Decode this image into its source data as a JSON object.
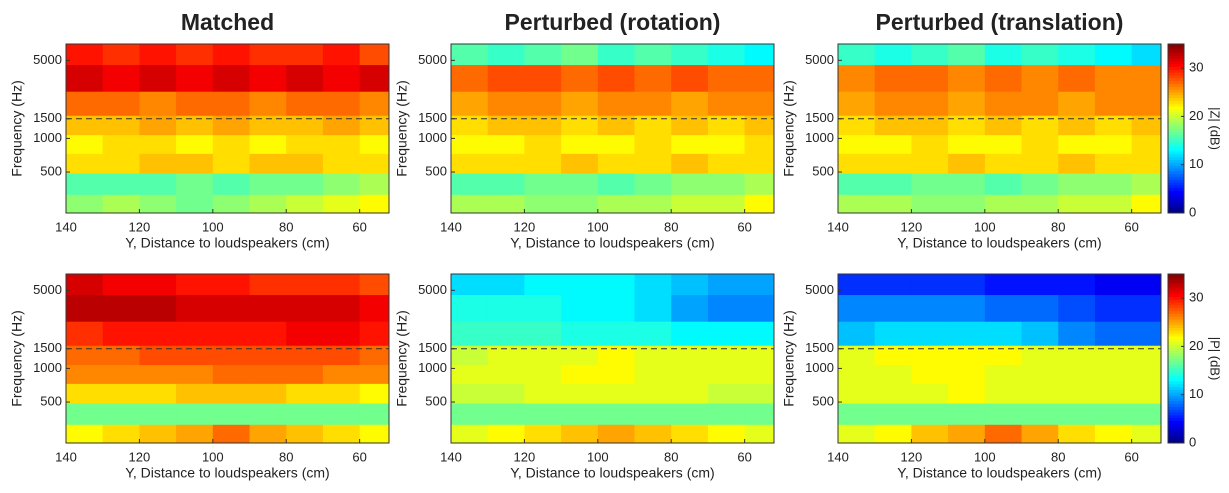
{
  "chart_data": [
    {
      "type": "heatmap",
      "title": "Matched",
      "xlabel": "Y, Distance to loudspeakers (cm)",
      "ylabel": "Frequency (Hz)",
      "colormap": "jet",
      "log_y": true,
      "hline": 1500,
      "x": [
        135,
        125,
        115,
        105,
        95,
        85,
        75,
        65,
        55
      ],
      "y": [
        250,
        400,
        600,
        900,
        1300,
        2000,
        3500,
        6000
      ],
      "z": [
        [
          18,
          19,
          18,
          17,
          18,
          19,
          20,
          21,
          22
        ],
        [
          16,
          16,
          16,
          17,
          16,
          17,
          17,
          18,
          19
        ],
        [
          23,
          23,
          24,
          24,
          23,
          24,
          24,
          23,
          23
        ],
        [
          22,
          23,
          23,
          22,
          23,
          22,
          23,
          23,
          22
        ],
        [
          24,
          24,
          25,
          24,
          25,
          24,
          24,
          25,
          24
        ],
        [
          27,
          27,
          26,
          27,
          27,
          26,
          27,
          27,
          26
        ],
        [
          32,
          31,
          32,
          31,
          32,
          31,
          32,
          31,
          32
        ],
        [
          30,
          29,
          30,
          29,
          30,
          29,
          29,
          30,
          28
        ]
      ],
      "xlim": [
        140,
        52
      ],
      "ylim": [
        215,
        7000
      ],
      "xticks": [
        140,
        120,
        100,
        80,
        60
      ],
      "yticks": [
        500,
        1000,
        1500,
        5000
      ],
      "zlim": [
        0,
        35
      ]
    },
    {
      "type": "heatmap",
      "title": "Perturbed (rotation)",
      "xlabel": "Y, Distance to loudspeakers (cm)",
      "ylabel": "Frequency (Hz)",
      "colormap": "jet",
      "log_y": true,
      "hline": 1500,
      "x": [
        135,
        125,
        115,
        105,
        95,
        85,
        75,
        65,
        55
      ],
      "y": [
        250,
        400,
        600,
        900,
        1300,
        2000,
        3500,
        6000
      ],
      "z": [
        [
          19,
          19,
          18,
          18,
          19,
          19,
          20,
          20,
          22
        ],
        [
          16,
          16,
          17,
          17,
          16,
          17,
          18,
          18,
          19
        ],
        [
          23,
          23,
          23,
          24,
          23,
          23,
          24,
          23,
          23
        ],
        [
          22,
          22,
          23,
          22,
          22,
          23,
          22,
          22,
          23
        ],
        [
          23,
          24,
          24,
          23,
          24,
          23,
          24,
          23,
          24
        ],
        [
          25,
          26,
          26,
          25,
          26,
          26,
          25,
          26,
          26
        ],
        [
          27,
          28,
          28,
          27,
          28,
          27,
          28,
          27,
          27
        ],
        [
          16,
          15,
          16,
          17,
          15,
          16,
          15,
          14,
          13
        ]
      ],
      "xlim": [
        140,
        52
      ],
      "ylim": [
        215,
        7000
      ],
      "xticks": [
        140,
        120,
        100,
        80,
        60
      ],
      "yticks": [
        500,
        1000,
        1500,
        5000
      ],
      "zlim": [
        0,
        35
      ]
    },
    {
      "type": "heatmap",
      "title": "Perturbed (translation)",
      "xlabel": "Y, Distance to loudspeakers (cm)",
      "ylabel": "Frequency (Hz)",
      "colormap": "jet",
      "log_y": true,
      "hline": 1500,
      "x": [
        135,
        125,
        115,
        105,
        95,
        85,
        75,
        65,
        55
      ],
      "y": [
        250,
        400,
        600,
        900,
        1300,
        2000,
        3500,
        6000
      ],
      "z": [
        [
          19,
          19,
          18,
          18,
          19,
          19,
          20,
          20,
          22
        ],
        [
          16,
          16,
          17,
          17,
          16,
          17,
          18,
          18,
          19
        ],
        [
          23,
          23,
          23,
          24,
          23,
          23,
          24,
          23,
          23
        ],
        [
          22,
          22,
          23,
          22,
          22,
          23,
          22,
          22,
          23
        ],
        [
          23,
          24,
          24,
          23,
          24,
          23,
          24,
          23,
          24
        ],
        [
          25,
          26,
          26,
          25,
          26,
          26,
          25,
          26,
          26
        ],
        [
          26,
          27,
          27,
          26,
          27,
          26,
          27,
          26,
          26
        ],
        [
          15,
          14,
          15,
          16,
          14,
          15,
          14,
          13,
          12
        ]
      ],
      "xlim": [
        140,
        52
      ],
      "ylim": [
        215,
        7000
      ],
      "xticks": [
        140,
        120,
        100,
        80,
        60
      ],
      "yticks": [
        500,
        1000,
        1500,
        5000
      ],
      "zlim": [
        0,
        35
      ],
      "colorbar": {
        "label": "|Z| (dB)",
        "ticks": [
          0,
          10,
          20,
          30
        ]
      }
    },
    {
      "type": "heatmap",
      "xlabel": "Y, Distance to loudspeakers (cm)",
      "ylabel": "Frequency (Hz)",
      "colormap": "jet",
      "log_y": true,
      "hline": 1500,
      "x": [
        135,
        125,
        115,
        105,
        95,
        85,
        75,
        65,
        55
      ],
      "y": [
        250,
        400,
        600,
        900,
        1300,
        2000,
        3500,
        6000
      ],
      "z": [
        [
          22,
          23,
          24,
          25,
          27,
          25,
          24,
          23,
          22
        ],
        [
          17,
          17,
          17,
          17,
          17,
          17,
          17,
          17,
          17
        ],
        [
          23,
          23,
          23,
          24,
          24,
          24,
          23,
          23,
          22
        ],
        [
          26,
          26,
          26,
          26,
          27,
          27,
          27,
          26,
          26
        ],
        [
          27,
          27,
          28,
          28,
          28,
          28,
          28,
          28,
          27
        ],
        [
          29,
          30,
          30,
          30,
          30,
          30,
          31,
          31,
          30
        ],
        [
          33,
          33,
          33,
          32,
          32,
          32,
          32,
          32,
          31
        ],
        [
          32,
          31,
          31,
          30,
          30,
          29,
          29,
          29,
          28
        ]
      ],
      "xlim": [
        140,
        52
      ],
      "ylim": [
        215,
        7000
      ],
      "xticks": [
        140,
        120,
        100,
        80,
        60
      ],
      "yticks": [
        500,
        1000,
        1500,
        5000
      ],
      "zlim": [
        0,
        35
      ]
    },
    {
      "type": "heatmap",
      "xlabel": "Y, Distance to loudspeakers (cm)",
      "ylabel": "Frequency (Hz)",
      "colormap": "jet",
      "log_y": true,
      "hline": 1500,
      "x": [
        135,
        125,
        115,
        105,
        95,
        85,
        75,
        65,
        55
      ],
      "y": [
        250,
        400,
        600,
        900,
        1300,
        2000,
        3500,
        6000
      ],
      "z": [
        [
          21,
          22,
          23,
          24,
          25,
          24,
          23,
          22,
          21
        ],
        [
          17,
          17,
          17,
          17,
          17,
          17,
          17,
          17,
          17
        ],
        [
          20,
          20,
          21,
          21,
          21,
          21,
          21,
          20,
          20
        ],
        [
          21,
          21,
          21,
          22,
          22,
          21,
          21,
          21,
          21
        ],
        [
          20,
          21,
          21,
          21,
          22,
          21,
          21,
          21,
          21
        ],
        [
          15,
          15,
          15,
          14,
          14,
          14,
          13,
          13,
          13
        ],
        [
          14,
          14,
          14,
          13,
          13,
          12,
          10,
          9,
          9
        ],
        [
          12,
          12,
          13,
          13,
          13,
          12,
          11,
          10,
          10
        ]
      ],
      "xlim": [
        140,
        52
      ],
      "ylim": [
        215,
        7000
      ],
      "xticks": [
        140,
        120,
        100,
        80,
        60
      ],
      "yticks": [
        500,
        1000,
        1500,
        5000
      ],
      "zlim": [
        0,
        35
      ]
    },
    {
      "type": "heatmap",
      "xlabel": "Y, Distance to loudspeakers (cm)",
      "ylabel": "Frequency (Hz)",
      "colormap": "jet",
      "log_y": true,
      "hline": 1500,
      "x": [
        135,
        125,
        115,
        105,
        95,
        85,
        75,
        65,
        55
      ],
      "y": [
        250,
        400,
        600,
        900,
        1300,
        2000,
        3500,
        6000
      ],
      "z": [
        [
          21,
          22,
          24,
          25,
          27,
          25,
          23,
          22,
          21
        ],
        [
          17,
          17,
          17,
          17,
          17,
          17,
          17,
          17,
          17
        ],
        [
          21,
          21,
          21,
          22,
          21,
          21,
          21,
          21,
          21
        ],
        [
          21,
          21,
          22,
          22,
          21,
          21,
          21,
          21,
          21
        ],
        [
          21,
          22,
          22,
          22,
          22,
          21,
          21,
          21,
          21
        ],
        [
          11,
          12,
          12,
          12,
          12,
          11,
          9,
          8,
          8
        ],
        [
          9,
          9,
          9,
          9,
          8,
          8,
          7,
          6,
          6
        ],
        [
          6,
          6,
          6,
          6,
          5,
          5,
          5,
          4,
          4
        ]
      ],
      "xlim": [
        140,
        52
      ],
      "ylim": [
        215,
        7000
      ],
      "xticks": [
        140,
        120,
        100,
        80,
        60
      ],
      "yticks": [
        500,
        1000,
        1500,
        5000
      ],
      "zlim": [
        0,
        35
      ],
      "colorbar": {
        "label": "|P| (dB)",
        "ticks": [
          0,
          10,
          20,
          30
        ]
      }
    }
  ]
}
